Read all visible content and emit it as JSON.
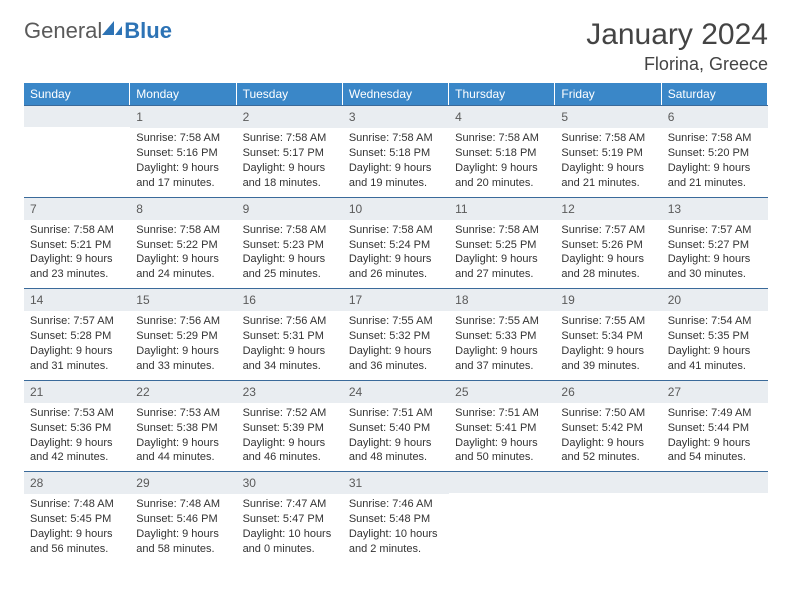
{
  "logo": {
    "text1": "General",
    "text2": "Blue"
  },
  "title": "January 2024",
  "location": "Florina, Greece",
  "colors": {
    "header_bg": "#3a87c8",
    "header_text": "#ffffff",
    "border": "#3a6a9a",
    "daynum_bg": "#e9edf1",
    "brand_blue": "#2d73b5",
    "logo_gray": "#5a5a5a"
  },
  "day_names": [
    "Sunday",
    "Monday",
    "Tuesday",
    "Wednesday",
    "Thursday",
    "Friday",
    "Saturday"
  ],
  "weeks": [
    [
      {
        "n": "",
        "empty": true
      },
      {
        "n": "1",
        "sr": "Sunrise: 7:58 AM",
        "ss": "Sunset: 5:16 PM",
        "d1": "Daylight: 9 hours",
        "d2": "and 17 minutes."
      },
      {
        "n": "2",
        "sr": "Sunrise: 7:58 AM",
        "ss": "Sunset: 5:17 PM",
        "d1": "Daylight: 9 hours",
        "d2": "and 18 minutes."
      },
      {
        "n": "3",
        "sr": "Sunrise: 7:58 AM",
        "ss": "Sunset: 5:18 PM",
        "d1": "Daylight: 9 hours",
        "d2": "and 19 minutes."
      },
      {
        "n": "4",
        "sr": "Sunrise: 7:58 AM",
        "ss": "Sunset: 5:18 PM",
        "d1": "Daylight: 9 hours",
        "d2": "and 20 minutes."
      },
      {
        "n": "5",
        "sr": "Sunrise: 7:58 AM",
        "ss": "Sunset: 5:19 PM",
        "d1": "Daylight: 9 hours",
        "d2": "and 21 minutes."
      },
      {
        "n": "6",
        "sr": "Sunrise: 7:58 AM",
        "ss": "Sunset: 5:20 PM",
        "d1": "Daylight: 9 hours",
        "d2": "and 21 minutes."
      }
    ],
    [
      {
        "n": "7",
        "sr": "Sunrise: 7:58 AM",
        "ss": "Sunset: 5:21 PM",
        "d1": "Daylight: 9 hours",
        "d2": "and 23 minutes."
      },
      {
        "n": "8",
        "sr": "Sunrise: 7:58 AM",
        "ss": "Sunset: 5:22 PM",
        "d1": "Daylight: 9 hours",
        "d2": "and 24 minutes."
      },
      {
        "n": "9",
        "sr": "Sunrise: 7:58 AM",
        "ss": "Sunset: 5:23 PM",
        "d1": "Daylight: 9 hours",
        "d2": "and 25 minutes."
      },
      {
        "n": "10",
        "sr": "Sunrise: 7:58 AM",
        "ss": "Sunset: 5:24 PM",
        "d1": "Daylight: 9 hours",
        "d2": "and 26 minutes."
      },
      {
        "n": "11",
        "sr": "Sunrise: 7:58 AM",
        "ss": "Sunset: 5:25 PM",
        "d1": "Daylight: 9 hours",
        "d2": "and 27 minutes."
      },
      {
        "n": "12",
        "sr": "Sunrise: 7:57 AM",
        "ss": "Sunset: 5:26 PM",
        "d1": "Daylight: 9 hours",
        "d2": "and 28 minutes."
      },
      {
        "n": "13",
        "sr": "Sunrise: 7:57 AM",
        "ss": "Sunset: 5:27 PM",
        "d1": "Daylight: 9 hours",
        "d2": "and 30 minutes."
      }
    ],
    [
      {
        "n": "14",
        "sr": "Sunrise: 7:57 AM",
        "ss": "Sunset: 5:28 PM",
        "d1": "Daylight: 9 hours",
        "d2": "and 31 minutes."
      },
      {
        "n": "15",
        "sr": "Sunrise: 7:56 AM",
        "ss": "Sunset: 5:29 PM",
        "d1": "Daylight: 9 hours",
        "d2": "and 33 minutes."
      },
      {
        "n": "16",
        "sr": "Sunrise: 7:56 AM",
        "ss": "Sunset: 5:31 PM",
        "d1": "Daylight: 9 hours",
        "d2": "and 34 minutes."
      },
      {
        "n": "17",
        "sr": "Sunrise: 7:55 AM",
        "ss": "Sunset: 5:32 PM",
        "d1": "Daylight: 9 hours",
        "d2": "and 36 minutes."
      },
      {
        "n": "18",
        "sr": "Sunrise: 7:55 AM",
        "ss": "Sunset: 5:33 PM",
        "d1": "Daylight: 9 hours",
        "d2": "and 37 minutes."
      },
      {
        "n": "19",
        "sr": "Sunrise: 7:55 AM",
        "ss": "Sunset: 5:34 PM",
        "d1": "Daylight: 9 hours",
        "d2": "and 39 minutes."
      },
      {
        "n": "20",
        "sr": "Sunrise: 7:54 AM",
        "ss": "Sunset: 5:35 PM",
        "d1": "Daylight: 9 hours",
        "d2": "and 41 minutes."
      }
    ],
    [
      {
        "n": "21",
        "sr": "Sunrise: 7:53 AM",
        "ss": "Sunset: 5:36 PM",
        "d1": "Daylight: 9 hours",
        "d2": "and 42 minutes."
      },
      {
        "n": "22",
        "sr": "Sunrise: 7:53 AM",
        "ss": "Sunset: 5:38 PM",
        "d1": "Daylight: 9 hours",
        "d2": "and 44 minutes."
      },
      {
        "n": "23",
        "sr": "Sunrise: 7:52 AM",
        "ss": "Sunset: 5:39 PM",
        "d1": "Daylight: 9 hours",
        "d2": "and 46 minutes."
      },
      {
        "n": "24",
        "sr": "Sunrise: 7:51 AM",
        "ss": "Sunset: 5:40 PM",
        "d1": "Daylight: 9 hours",
        "d2": "and 48 minutes."
      },
      {
        "n": "25",
        "sr": "Sunrise: 7:51 AM",
        "ss": "Sunset: 5:41 PM",
        "d1": "Daylight: 9 hours",
        "d2": "and 50 minutes."
      },
      {
        "n": "26",
        "sr": "Sunrise: 7:50 AM",
        "ss": "Sunset: 5:42 PM",
        "d1": "Daylight: 9 hours",
        "d2": "and 52 minutes."
      },
      {
        "n": "27",
        "sr": "Sunrise: 7:49 AM",
        "ss": "Sunset: 5:44 PM",
        "d1": "Daylight: 9 hours",
        "d2": "and 54 minutes."
      }
    ],
    [
      {
        "n": "28",
        "sr": "Sunrise: 7:48 AM",
        "ss": "Sunset: 5:45 PM",
        "d1": "Daylight: 9 hours",
        "d2": "and 56 minutes."
      },
      {
        "n": "29",
        "sr": "Sunrise: 7:48 AM",
        "ss": "Sunset: 5:46 PM",
        "d1": "Daylight: 9 hours",
        "d2": "and 58 minutes."
      },
      {
        "n": "30",
        "sr": "Sunrise: 7:47 AM",
        "ss": "Sunset: 5:47 PM",
        "d1": "Daylight: 10 hours",
        "d2": "and 0 minutes."
      },
      {
        "n": "31",
        "sr": "Sunrise: 7:46 AM",
        "ss": "Sunset: 5:48 PM",
        "d1": "Daylight: 10 hours",
        "d2": "and 2 minutes."
      },
      {
        "n": "",
        "empty": true
      },
      {
        "n": "",
        "empty": true
      },
      {
        "n": "",
        "empty": true
      }
    ]
  ]
}
